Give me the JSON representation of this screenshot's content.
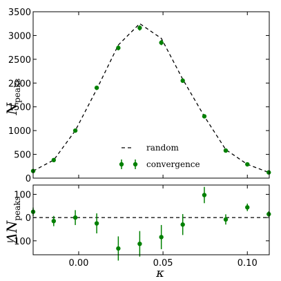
{
  "chart_data": [
    {
      "type": "line",
      "ylabel_symbol": "N",
      "ylabel_subscript": "peaks",
      "xlim": [
        -0.027,
        0.113
      ],
      "ylim": [
        0,
        3500
      ],
      "yticks": [
        0,
        500,
        1000,
        1500,
        2000,
        2500,
        3000,
        3500
      ],
      "ytick_labels": [
        "0",
        "500",
        "1000",
        "1500",
        "2000",
        "2500",
        "3000",
        "3500"
      ],
      "grid": false,
      "legend_placement": "lower-center",
      "series": [
        {
          "name": "random",
          "style": "dashed-line",
          "color": "#000000",
          "x": [
            -0.027,
            -0.0148,
            -0.002,
            0.0107,
            0.0235,
            0.0362,
            0.049,
            0.0617,
            0.0745,
            0.0872,
            0.1,
            0.1127
          ],
          "y": [
            150,
            380,
            1000,
            1870,
            2800,
            3250,
            2940,
            2080,
            1300,
            600,
            290,
            120
          ]
        },
        {
          "name": "convergence",
          "style": "points-with-errorbars",
          "color": "#008000",
          "x": [
            -0.027,
            -0.0148,
            -0.002,
            0.0107,
            0.0235,
            0.0362,
            0.049,
            0.0617,
            0.0745,
            0.0872,
            0.1,
            0.1127
          ],
          "y": [
            150,
            380,
            1000,
            1900,
            2740,
            3160,
            2850,
            2050,
            1300,
            580,
            290,
            120
          ],
          "yerr": [
            12,
            20,
            30,
            43,
            52,
            56,
            53,
            45,
            36,
            24,
            17,
            11
          ]
        }
      ]
    },
    {
      "type": "scatter",
      "xlabel": "κ",
      "ylabel_symbol": "ΔN",
      "ylabel_subscript": "peaks",
      "xlim": [
        -0.027,
        0.113
      ],
      "ylim": [
        -160,
        140
      ],
      "xticks": [
        0.0,
        0.05,
        0.1
      ],
      "xtick_labels": [
        "0.00",
        "0.05",
        "0.10"
      ],
      "yticks": [
        -100,
        0,
        100
      ],
      "ytick_labels": [
        "−100",
        "0",
        "100"
      ],
      "reference_line": 0,
      "grid": false,
      "series": [
        {
          "name": "convergence",
          "color": "#008000",
          "x": [
            -0.027,
            -0.0148,
            -0.002,
            0.0107,
            0.0235,
            0.0362,
            0.049,
            0.0617,
            0.0745,
            0.0872,
            0.1,
            0.1127
          ],
          "y": [
            25,
            -15,
            0,
            -25,
            -133,
            -113,
            -84,
            -30,
            97,
            -8,
            44,
            15
          ],
          "yerr": [
            18,
            22,
            32,
            43,
            52,
            55,
            52,
            45,
            35,
            22,
            16,
            12
          ]
        }
      ]
    }
  ]
}
